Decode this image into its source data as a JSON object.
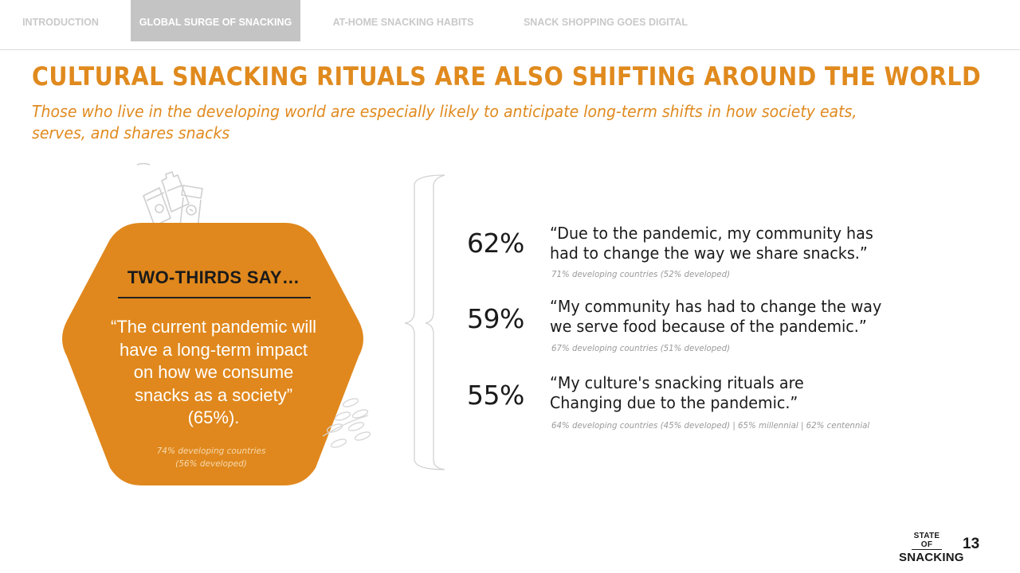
{
  "nav": {
    "tabs": [
      {
        "label": "INTRODUCTION",
        "active": false
      },
      {
        "label": "GLOBAL SURGE OF SNACKING",
        "active": true
      },
      {
        "label": "AT-HOME SNACKING HABITS",
        "active": false
      },
      {
        "label": "SNACK SHOPPING GOES DIGITAL",
        "active": false
      }
    ]
  },
  "title": "CULTURAL SNACKING RITUALS ARE ALSO SHIFTING AROUND THE WORLD",
  "subtitle": "Those who live in the developing world are especially likely to anticipate long-term shifts in how society eats, serves, and shares snacks",
  "card": {
    "heading": "TWO-THIRDS SAY…",
    "quote_lines": [
      "“The current pandemic will",
      "have a long-term impact",
      "on how we consume",
      "snacks as a society”",
      "(65%)."
    ],
    "note_lines": [
      "74% developing countries",
      "(56% developed)"
    ]
  },
  "stats": [
    {
      "percent": "62%",
      "quote_lines": [
        "“Due to the pandemic, my community has",
        "had to change the way we share snacks.”"
      ],
      "note": "71% developing countries (52% developed)"
    },
    {
      "percent": "59%",
      "quote_lines": [
        "“My community has had to change the way",
        "we serve food because of the pandemic.”"
      ],
      "note": "67% developing countries (51% developed)"
    },
    {
      "percent": "55%",
      "quote_lines": [
        "“My culture's snacking rituals are",
        "Changing due to the pandemic.”"
      ],
      "note": "64% developing countries (45% developed) | 65% millennial | 62% centennial"
    }
  ],
  "footer": {
    "logo_top": "STATE OF",
    "logo_bottom": "SNACKING",
    "page_number": "13"
  },
  "colors": {
    "accent_orange": "#e08a1e",
    "hex_fill": "#e0881d",
    "nav_active_bg": "#c4c4c4",
    "nav_inactive_text": "#c9c9c9",
    "note_gray": "#9a9a9a"
  },
  "icons": [
    "snack-packages-icon",
    "wheat-icon",
    "curly-brace-icon"
  ]
}
